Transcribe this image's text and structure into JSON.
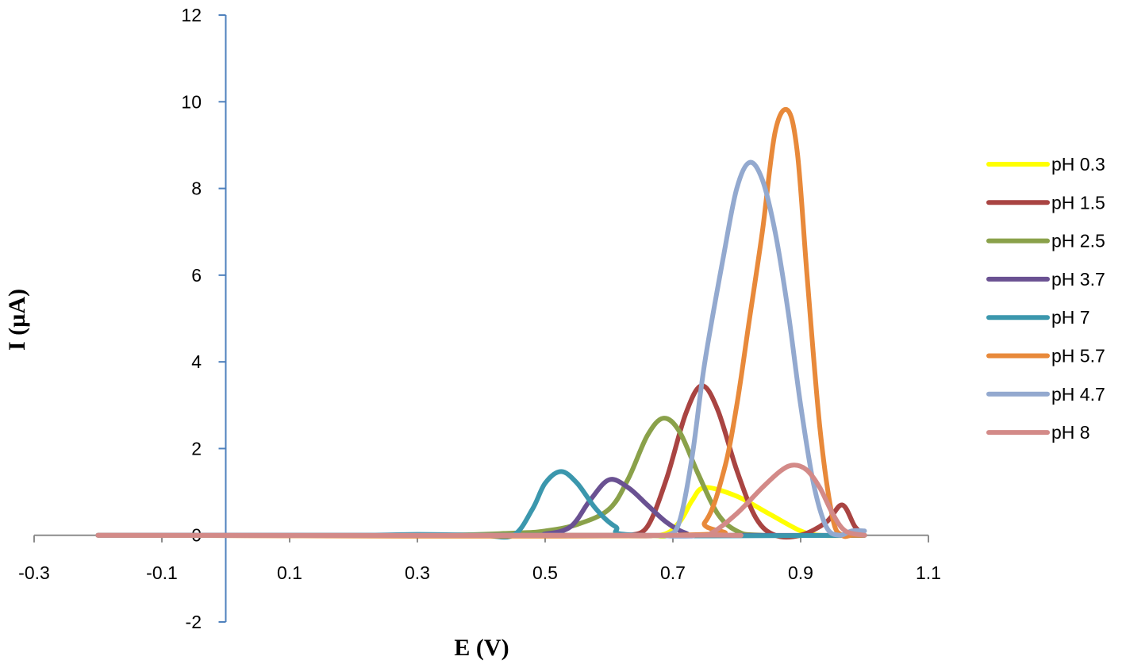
{
  "chart_data": {
    "type": "line",
    "title": "",
    "xlabel": "E (V)",
    "ylabel": "I (µA)",
    "xlim": [
      -0.3,
      1.1
    ],
    "ylim": [
      -2,
      12
    ],
    "x_ticks": [
      "-0.3",
      "-0.1",
      "0.1",
      "0.3",
      "0.5",
      "0.7",
      "0.9",
      "1.1"
    ],
    "y_ticks": [
      "-2",
      "0",
      "2",
      "4",
      "6",
      "8",
      "10",
      "12"
    ],
    "x_tick_values": [
      -0.3,
      -0.1,
      0.1,
      0.3,
      0.5,
      0.7,
      0.9,
      1.1
    ],
    "y_tick_values": [
      -2,
      0,
      2,
      4,
      6,
      8,
      10,
      12
    ],
    "grid": false,
    "legend_position": "right",
    "series": [
      {
        "name": "pH 0.3",
        "color": "#FFFF00",
        "x": [
          -0.2,
          0.6,
          0.68,
          0.71,
          0.73,
          0.75,
          0.8,
          0.85,
          0.9,
          0.93,
          1.0
        ],
        "y": [
          0,
          0,
          0,
          0.3,
          0.8,
          1.1,
          0.9,
          0.5,
          0.1,
          0,
          0
        ]
      },
      {
        "name": "pH 1.5",
        "color": "#A94442",
        "x": [
          -0.2,
          0.6,
          0.63,
          0.66,
          0.69,
          0.72,
          0.745,
          0.77,
          0.8,
          0.83,
          0.86,
          0.9,
          0.94,
          0.965,
          0.985,
          1.0
        ],
        "y": [
          0,
          0,
          0,
          0.2,
          1.3,
          2.8,
          3.45,
          2.9,
          1.5,
          0.4,
          0,
          0,
          0.3,
          0.7,
          0.2,
          0
        ]
      },
      {
        "name": "pH 2.5",
        "color": "#8AA14A",
        "x": [
          -0.2,
          0.3,
          0.45,
          0.5,
          0.55,
          0.6,
          0.63,
          0.66,
          0.685,
          0.71,
          0.74,
          0.77,
          0.8,
          0.84,
          1.0
        ],
        "y": [
          0,
          0,
          0.05,
          0.1,
          0.25,
          0.6,
          1.3,
          2.3,
          2.7,
          2.4,
          1.4,
          0.5,
          0.1,
          0,
          0
        ]
      },
      {
        "name": "pH 3.7",
        "color": "#6A5192",
        "x": [
          -0.2,
          0.45,
          0.5,
          0.54,
          0.57,
          0.6,
          0.63,
          0.66,
          0.69,
          0.72,
          0.75,
          1.0
        ],
        "y": [
          0,
          0,
          0.03,
          0.2,
          0.8,
          1.28,
          1.1,
          0.7,
          0.3,
          0.05,
          0,
          0
        ]
      },
      {
        "name": "pH 7",
        "color": "#3B97AD",
        "x": [
          -0.2,
          0.2,
          0.3,
          0.4,
          0.45,
          0.48,
          0.5,
          0.525,
          0.55,
          0.58,
          0.61,
          0.65,
          1.0
        ],
        "y": [
          0,
          0,
          0.02,
          0,
          0,
          0.6,
          1.2,
          1.47,
          1.2,
          0.6,
          0.2,
          0,
          0
        ]
      },
      {
        "name": "pH 5.7",
        "color": "#E8893A",
        "x": [
          -0.2,
          0.7,
          0.75,
          0.78,
          0.8,
          0.82,
          0.84,
          0.86,
          0.88,
          0.895,
          0.91,
          0.93,
          0.95,
          0.965,
          0.98,
          1.0
        ],
        "y": [
          0,
          0,
          0.3,
          1.5,
          3.0,
          5.0,
          7.0,
          9.3,
          9.8,
          8.8,
          6.0,
          2.5,
          0.4,
          0,
          0,
          0
        ]
      },
      {
        "name": "pH 4.7",
        "color": "#93A9CF",
        "x": [
          -0.2,
          0.66,
          0.69,
          0.71,
          0.73,
          0.75,
          0.78,
          0.8,
          0.82,
          0.84,
          0.86,
          0.88,
          0.9,
          0.92,
          0.94,
          0.96,
          0.98,
          1.0
        ],
        "y": [
          0,
          0,
          0,
          0.3,
          1.8,
          4.0,
          6.5,
          8.0,
          8.6,
          8.2,
          7.0,
          5.2,
          3.0,
          1.2,
          0.2,
          0,
          0.1,
          0.1
        ]
      },
      {
        "name": "pH 8",
        "color": "#D38A88",
        "x": [
          -0.2,
          0.73,
          0.76,
          0.8,
          0.84,
          0.87,
          0.89,
          0.91,
          0.93,
          0.95,
          0.97,
          1.0
        ],
        "y": [
          0,
          0,
          0.05,
          0.5,
          1.1,
          1.5,
          1.62,
          1.5,
          1.1,
          0.5,
          0.1,
          0
        ]
      }
    ]
  }
}
